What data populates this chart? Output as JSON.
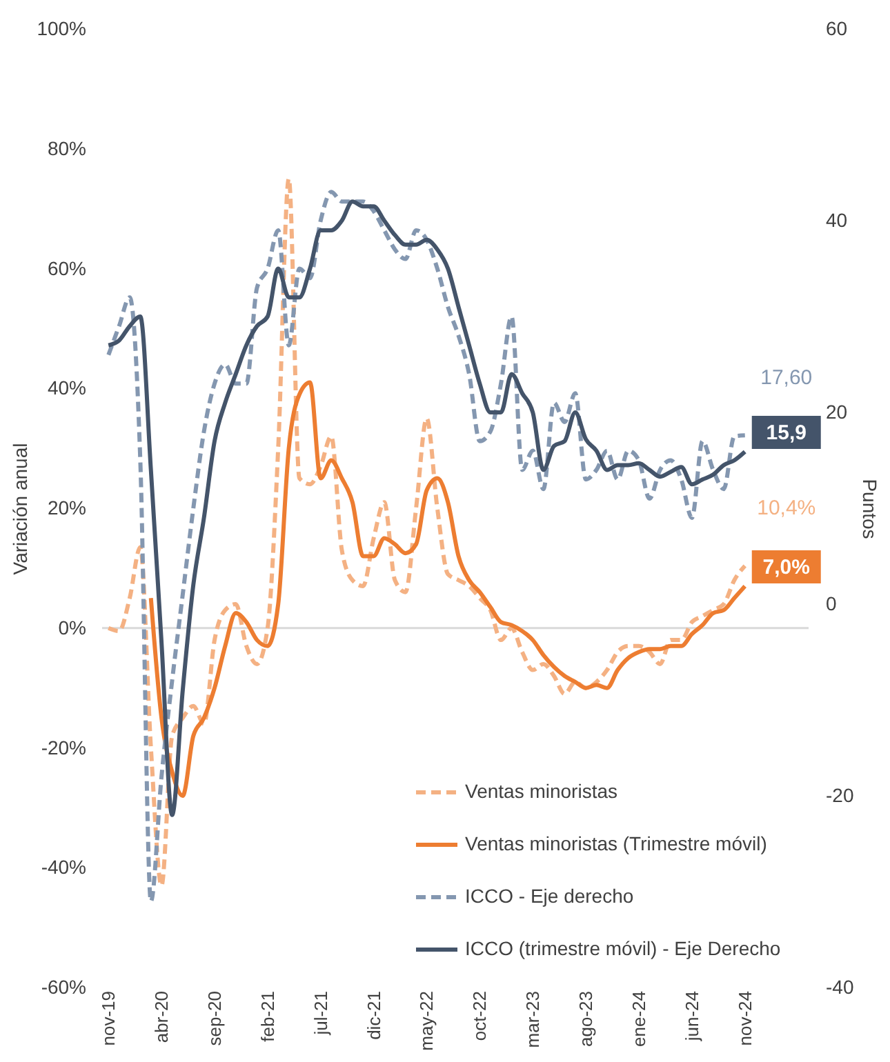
{
  "chart_data": {
    "type": "line",
    "ylabel": "Variación anual",
    "y2label": "Puntos",
    "categories": [
      "nov-19",
      null,
      null,
      null,
      null,
      "abr-20",
      null,
      null,
      null,
      null,
      "sep-20",
      null,
      null,
      null,
      null,
      "feb-21",
      null,
      null,
      null,
      null,
      "jul-21",
      null,
      null,
      null,
      null,
      "dic-21",
      null,
      null,
      null,
      null,
      "may-22",
      null,
      null,
      null,
      null,
      "oct-22",
      null,
      null,
      null,
      null,
      "mar-23",
      null,
      null,
      null,
      null,
      "ago-23",
      null,
      null,
      null,
      null,
      "ene-24",
      null,
      null,
      null,
      null,
      "jun-24",
      null,
      null,
      null,
      null,
      "nov-24"
    ],
    "series": [
      {
        "name": "Ventas minoristas",
        "color": "#f4b183",
        "line_style": "dashed",
        "values": [
          0,
          -0.5,
          5,
          13.5,
          -20,
          -43,
          -18,
          -15,
          -13,
          -16,
          -2,
          3,
          4,
          -3,
          -6,
          0,
          30,
          75,
          25,
          24,
          27,
          32,
          13,
          8,
          7,
          15,
          21,
          8,
          6,
          20,
          35,
          20,
          9,
          8,
          7,
          5,
          3,
          -2,
          0,
          -4,
          -7,
          -6,
          -8,
          -11,
          -9,
          -10,
          -9,
          -7,
          -4,
          -3,
          -3,
          -4,
          -6,
          -2,
          -2,
          1,
          2,
          3,
          4,
          8,
          10.4
        ],
        "value_labels": [
          null,
          null,
          null,
          null,
          null,
          null,
          null,
          null,
          null,
          null,
          null,
          null,
          null,
          null,
          null,
          null,
          null,
          null,
          null,
          null,
          null,
          null,
          null,
          null,
          null,
          null,
          null,
          null,
          null,
          null,
          null,
          null,
          null,
          null,
          null,
          null,
          null,
          null,
          null,
          null,
          null,
          null,
          null,
          null,
          null,
          null,
          null,
          null,
          null,
          null,
          null,
          null,
          null,
          null,
          null,
          null,
          null,
          null,
          null,
          null,
          "10,4%"
        ]
      },
      {
        "name": "Ventas minoristas (Trimestre móvil)",
        "color": "#ed7d31",
        "line_style": "solid",
        "values": [
          null,
          null,
          null,
          null,
          5,
          -15,
          -24,
          -28,
          -18,
          -15,
          -10,
          -3,
          2.5,
          1,
          -2,
          -3,
          4,
          30,
          39,
          41,
          25,
          28,
          25,
          21,
          12,
          12,
          15,
          14,
          12.5,
          14,
          23,
          25,
          21,
          12,
          8,
          6,
          3.5,
          1,
          0.5,
          -0.5,
          -2,
          -4.5,
          -6.5,
          -8,
          -9,
          -10,
          -9.5,
          -10,
          -7,
          -5,
          -4,
          -3.5,
          -3.5,
          -3,
          -3,
          -1,
          0.5,
          2.5,
          3,
          5,
          7.0
        ],
        "value_labels": [
          null,
          null,
          null,
          null,
          null,
          null,
          null,
          null,
          null,
          null,
          null,
          null,
          null,
          null,
          null,
          null,
          null,
          null,
          null,
          null,
          null,
          null,
          null,
          null,
          null,
          null,
          null,
          null,
          null,
          null,
          null,
          null,
          null,
          null,
          null,
          null,
          null,
          null,
          null,
          null,
          null,
          null,
          null,
          null,
          null,
          null,
          null,
          null,
          null,
          null,
          null,
          null,
          null,
          null,
          null,
          null,
          null,
          null,
          null,
          null,
          "7,0%"
        ]
      },
      {
        "name": "ICCO - Eje derecho",
        "color": "#8497b0",
        "line_style": "dashed",
        "axis": "y2",
        "values": [
          26,
          29,
          32,
          15,
          -31,
          -18,
          -8,
          1,
          10,
          18,
          23,
          25,
          23,
          23,
          33,
          35,
          39,
          27,
          35,
          34,
          40,
          43,
          42,
          42,
          42,
          41,
          39,
          37,
          36,
          39,
          38,
          35,
          31,
          28,
          24,
          17,
          18,
          23,
          30,
          14,
          16,
          12,
          21,
          19,
          22,
          13,
          14,
          16,
          13,
          16,
          15,
          11,
          14,
          15,
          13,
          9,
          17,
          14,
          12,
          17.5,
          17.6
        ],
        "value_labels": [
          null,
          null,
          null,
          null,
          null,
          null,
          null,
          null,
          null,
          null,
          null,
          null,
          null,
          null,
          null,
          null,
          null,
          null,
          null,
          null,
          null,
          null,
          null,
          null,
          null,
          null,
          null,
          null,
          null,
          null,
          null,
          null,
          null,
          null,
          null,
          null,
          null,
          null,
          null,
          null,
          null,
          null,
          null,
          null,
          null,
          null,
          null,
          null,
          null,
          null,
          null,
          null,
          null,
          null,
          null,
          null,
          null,
          null,
          null,
          null,
          "17,60"
        ]
      },
      {
        "name": "ICCO (trimestre móvil) - Eje Derecho",
        "color": "#44546a",
        "line_style": "solid",
        "axis": "y2",
        "values": [
          27,
          27.5,
          29,
          30,
          14,
          -4,
          -22,
          -9,
          2,
          9,
          17,
          21,
          24,
          27,
          29,
          30,
          35,
          32,
          32,
          35,
          39,
          39,
          40,
          42,
          41.5,
          41.5,
          40,
          38.5,
          37.5,
          37.5,
          38,
          37,
          35,
          31,
          27,
          23,
          20,
          20,
          24,
          22,
          20,
          14,
          16.5,
          17,
          20,
          17.2,
          16,
          14,
          14.5,
          14.5,
          14.7,
          14,
          13.3,
          13.8,
          14.3,
          12.5,
          13,
          13.5,
          14.5,
          15,
          15.9
        ],
        "value_labels": [
          null,
          null,
          null,
          null,
          null,
          null,
          null,
          null,
          null,
          null,
          null,
          null,
          null,
          null,
          null,
          null,
          null,
          null,
          null,
          null,
          null,
          null,
          null,
          null,
          null,
          null,
          null,
          null,
          null,
          null,
          null,
          null,
          null,
          null,
          null,
          null,
          null,
          null,
          null,
          null,
          null,
          null,
          null,
          null,
          null,
          null,
          null,
          null,
          null,
          null,
          null,
          null,
          null,
          null,
          null,
          null,
          null,
          null,
          null,
          null,
          "15,9"
        ]
      }
    ],
    "ylim": [
      -60,
      100
    ],
    "yticks": [
      {
        "value": -60,
        "label": "-60%"
      },
      {
        "value": -40,
        "label": "-40%"
      },
      {
        "value": -20,
        "label": "-20%"
      },
      {
        "value": 0,
        "label": "0%"
      },
      {
        "value": 20,
        "label": "20%"
      },
      {
        "value": 40,
        "label": "40%"
      },
      {
        "value": 60,
        "label": "60%"
      },
      {
        "value": 80,
        "label": "80%"
      },
      {
        "value": 100,
        "label": "100%"
      }
    ],
    "y2lim": [
      -40,
      60
    ],
    "y2ticks": [
      -40,
      -20,
      0,
      20,
      40,
      60
    ],
    "ref_lines": [
      {
        "axis": "y",
        "value": 0,
        "color": "#d9d9d9"
      }
    ],
    "grid": false,
    "legend": "bottom right"
  }
}
